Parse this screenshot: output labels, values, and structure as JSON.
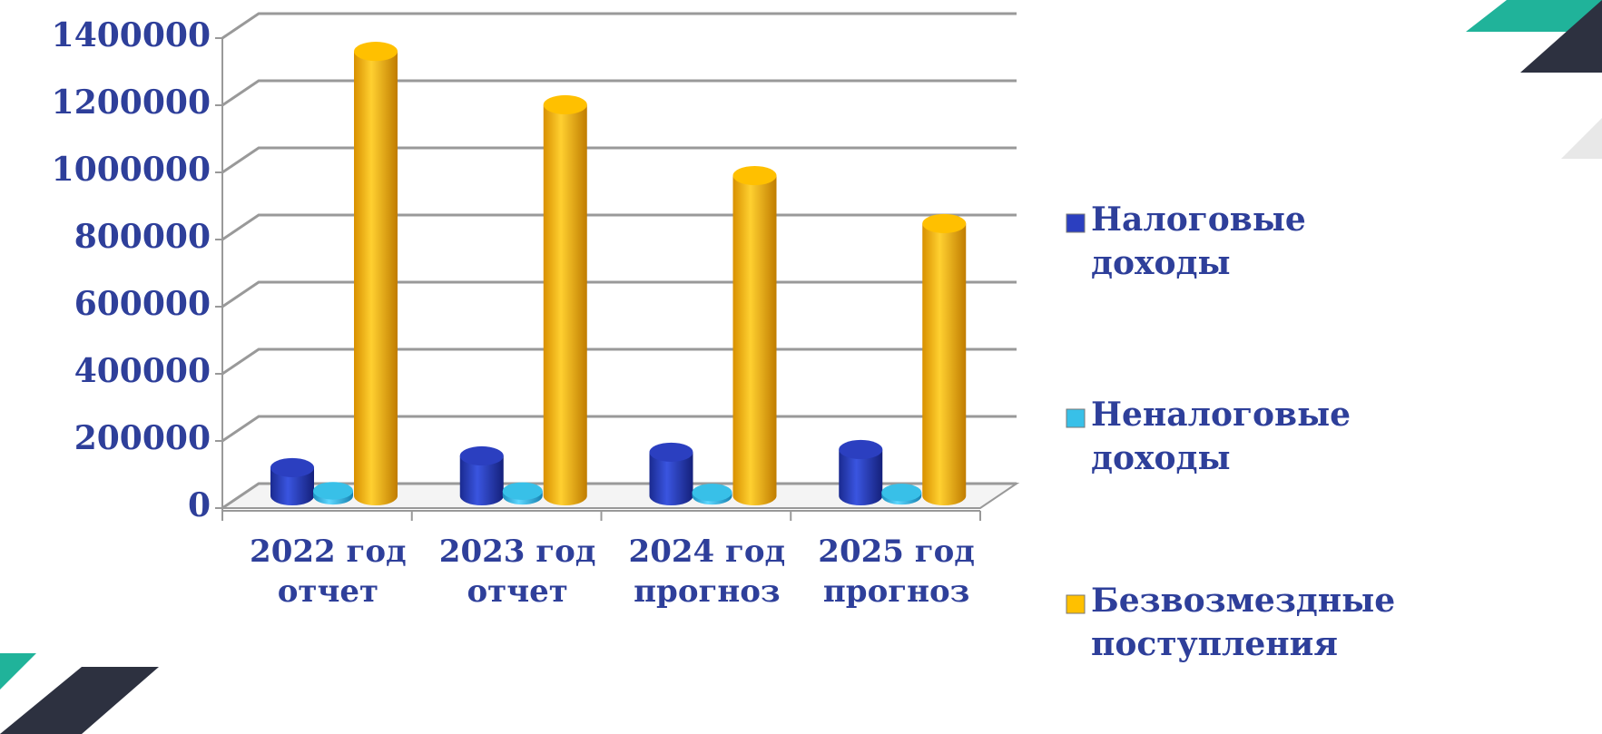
{
  "chart_data": {
    "type": "bar3d",
    "categories": [
      "2022 год отчет",
      "2023 год отчет",
      "2024 год прогноз",
      "2025 год прогноз"
    ],
    "series": [
      {
        "name": "Налоговые доходы",
        "color": "#2b3fc0",
        "values": [
          84000,
          119000,
          130000,
          138000
        ]
      },
      {
        "name": "Неналоговые доходы",
        "color": "#38c0e8",
        "values": [
          15000,
          14000,
          10000,
          10000
        ]
      },
      {
        "name": "Безвозмездные поступления",
        "color": "#ffc000",
        "values": [
          1324000,
          1165000,
          954000,
          811000
        ]
      }
    ],
    "ylim": [
      0,
      1400000
    ],
    "yticks": [
      0,
      200000,
      400000,
      600000,
      800000,
      1000000,
      1200000,
      1400000
    ],
    "grid": true,
    "legend": "right"
  }
}
